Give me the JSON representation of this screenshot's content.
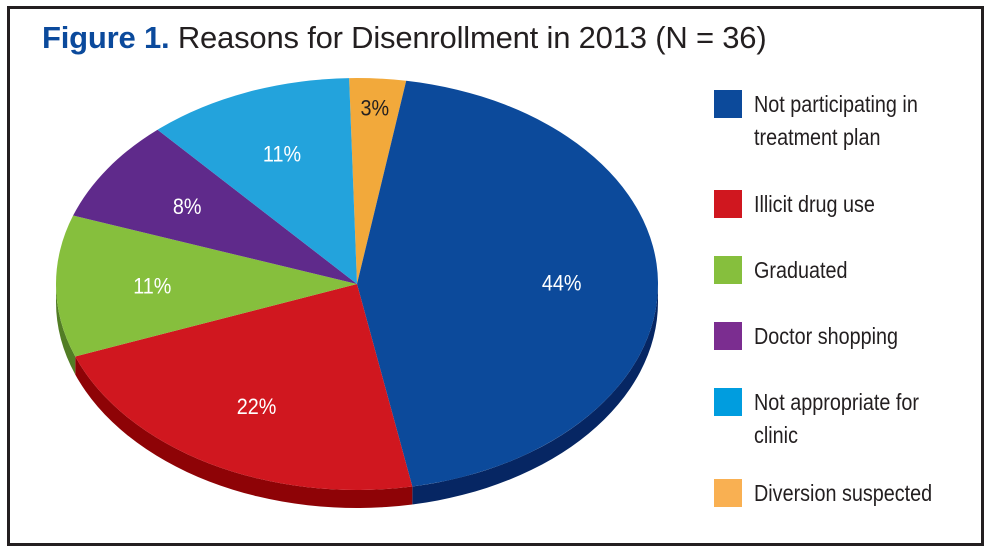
{
  "chart_data": {
    "type": "pie",
    "title_prefix": "Figure 1.",
    "title": "Reasons for Disenrollment in 2013 (N = 36)",
    "unit": "%",
    "legend_position": "right",
    "slices": [
      {
        "label": "Diversion suspected",
        "value": 3,
        "display": "3%",
        "color": "#f2a93b",
        "side_color": "#b87a20",
        "label_color": "#231f20"
      },
      {
        "label": "Not participating in treatment plan",
        "value": 44,
        "display": "44%",
        "color": "#0c4a9b",
        "side_color": "#062663",
        "label_color": "#ffffff"
      },
      {
        "label": "Illicit drug use",
        "value": 22,
        "display": "22%",
        "color": "#d0171f",
        "side_color": "#8e0306",
        "label_color": "#ffffff"
      },
      {
        "label": "Graduated",
        "value": 11,
        "display": "11%",
        "color": "#86bf3d",
        "side_color": "#527d25",
        "label_color": "#ffffff"
      },
      {
        "label": "Doctor shopping",
        "value": 8,
        "display": "8%",
        "color": "#5f2a8b",
        "side_color": "#3c1859",
        "label_color": "#ffffff"
      },
      {
        "label": "Not appropriate for clinic",
        "value": 11,
        "display": "11%",
        "color": "#23a3dc",
        "side_color": "#167099",
        "label_color": "#ffffff"
      }
    ]
  },
  "legend": [
    {
      "line1": "Not participating in",
      "line2": "treatment plan",
      "color": "#0c4a9b"
    },
    {
      "line1": "Illicit drug use",
      "line2": "",
      "color": "#d0171f"
    },
    {
      "line1": "Graduated",
      "line2": "",
      "color": "#86bf3d"
    },
    {
      "line1": "Doctor shopping",
      "line2": "",
      "color": "#7b2d90"
    },
    {
      "line1": "Not appropriate for",
      "line2": "clinic",
      "color": "#009ddf"
    },
    {
      "line1": "Diversion suspected",
      "line2": "",
      "color": "#f9b052"
    }
  ]
}
